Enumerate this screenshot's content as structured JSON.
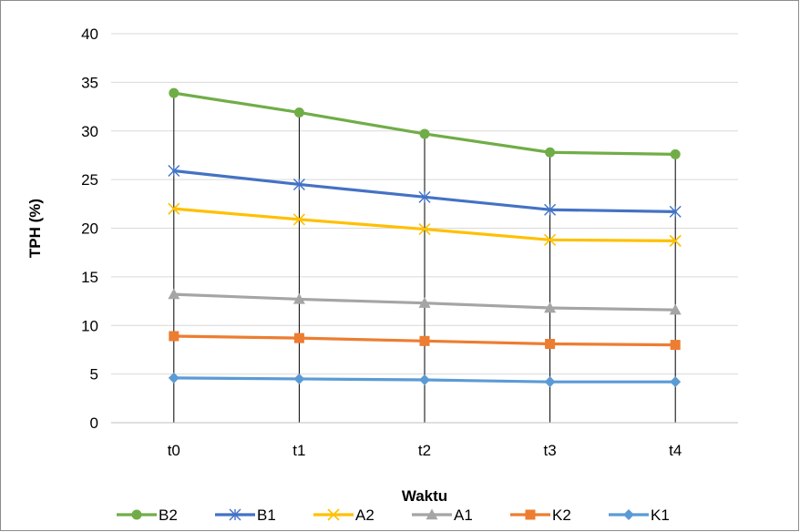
{
  "chart_data": {
    "type": "line",
    "title": "",
    "xlabel": "Waktu",
    "ylabel": "TPH (%)",
    "categories": [
      "t0",
      "t1",
      "t2",
      "t3",
      "t4"
    ],
    "ylim": [
      0,
      40
    ],
    "yticks": [
      0,
      5,
      10,
      15,
      20,
      25,
      30,
      35,
      40
    ],
    "grid": "horizontal",
    "legend": "bottom",
    "series": [
      {
        "name": "B2",
        "values": [
          33.9,
          31.9,
          29.7,
          27.8,
          27.6
        ],
        "color": "#70ad47",
        "marker": "circle"
      },
      {
        "name": "B1",
        "values": [
          25.9,
          24.5,
          23.2,
          21.9,
          21.7
        ],
        "color": "#4472c4",
        "marker": "asterisk"
      },
      {
        "name": "A2",
        "values": [
          22.0,
          20.9,
          19.9,
          18.8,
          18.7
        ],
        "color": "#ffc000",
        "marker": "x"
      },
      {
        "name": "A1",
        "values": [
          13.2,
          12.7,
          12.3,
          11.8,
          11.6
        ],
        "color": "#a5a5a5",
        "marker": "triangle"
      },
      {
        "name": "K2",
        "values": [
          8.9,
          8.7,
          8.4,
          8.1,
          8.0
        ],
        "color": "#ed7d31",
        "marker": "square"
      },
      {
        "name": "K1",
        "values": [
          4.6,
          4.5,
          4.4,
          4.2,
          4.2
        ],
        "color": "#5b9bd5",
        "marker": "diamond"
      }
    ]
  }
}
